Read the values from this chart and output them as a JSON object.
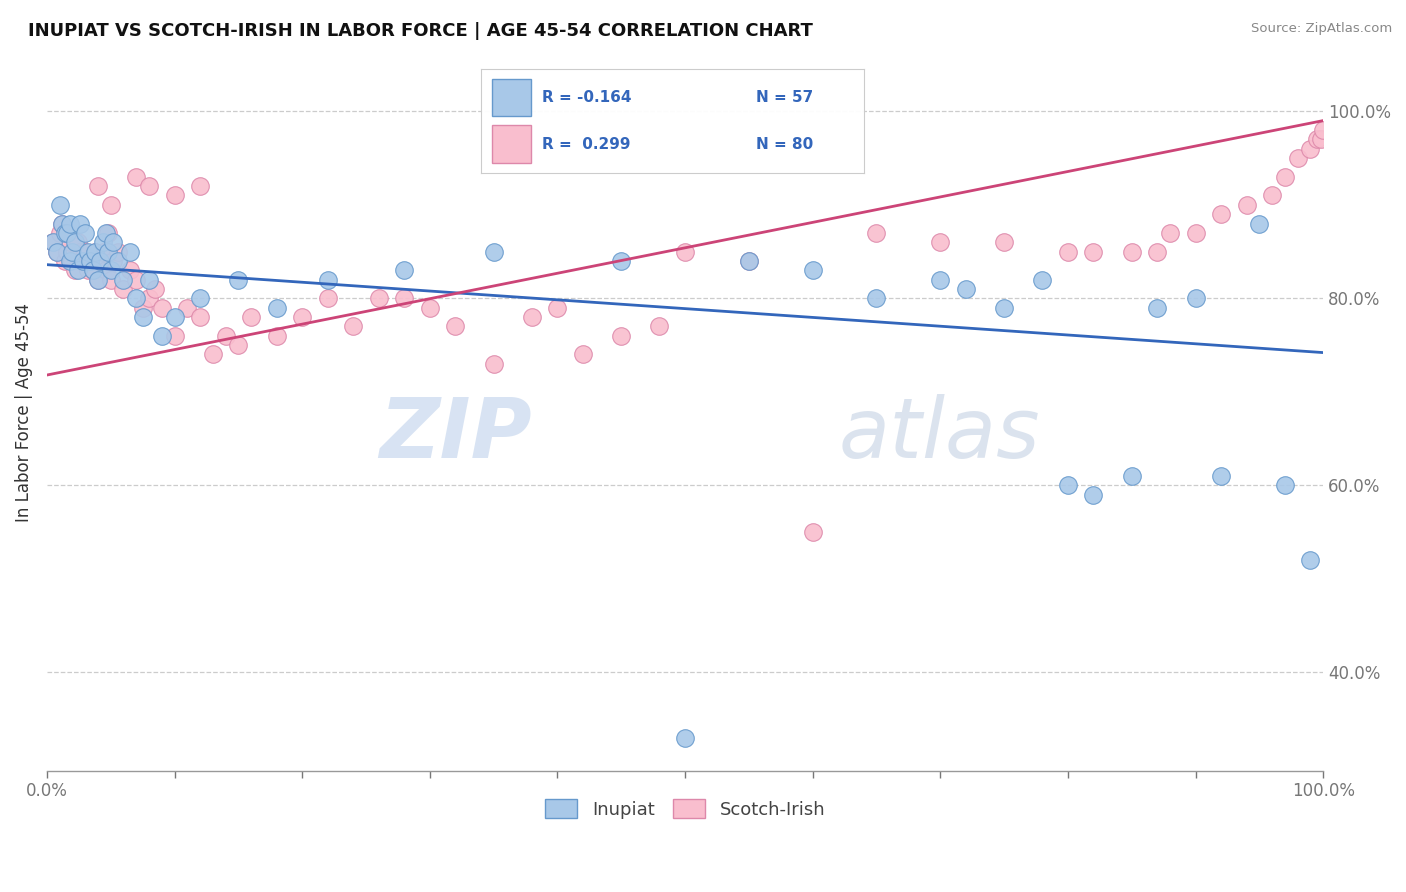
{
  "title": "INUPIAT VS SCOTCH-IRISH IN LABOR FORCE | AGE 45-54 CORRELATION CHART",
  "source": "Source: ZipAtlas.com",
  "ylabel": "In Labor Force | Age 45-54",
  "xlim": [
    0.0,
    1.0
  ],
  "ylim": [
    0.295,
    1.06
  ],
  "yticks": [
    0.4,
    0.6,
    0.8,
    1.0
  ],
  "ytick_labels": [
    "40.0%",
    "60.0%",
    "80.0%",
    "100.0%"
  ],
  "xtick_labels_show": [
    "0.0%",
    "100.0%"
  ],
  "inupiat_color": "#a8c8e8",
  "scotch_color": "#f9bece",
  "inupiat_edge": "#6699cc",
  "scotch_edge": "#dd88aa",
  "trend_blue": "#3366bb",
  "trend_pink": "#cc4477",
  "watermark_zip": "ZIP",
  "watermark_atlas": "atlas",
  "legend_box_color": "#eeeeee",
  "blue_trend_start": 0.836,
  "blue_trend_end": 0.742,
  "pink_trend_start": 0.718,
  "pink_trend_end": 0.99,
  "inupiat_x": [
    0.005,
    0.008,
    0.01,
    0.012,
    0.014,
    0.016,
    0.018,
    0.018,
    0.02,
    0.022,
    0.024,
    0.026,
    0.028,
    0.03,
    0.032,
    0.034,
    0.036,
    0.038,
    0.04,
    0.042,
    0.044,
    0.046,
    0.048,
    0.05,
    0.052,
    0.056,
    0.06,
    0.065,
    0.07,
    0.075,
    0.08,
    0.09,
    0.1,
    0.12,
    0.15,
    0.18,
    0.22,
    0.28,
    0.35,
    0.45,
    0.5,
    0.55,
    0.6,
    0.65,
    0.7,
    0.72,
    0.75,
    0.78,
    0.8,
    0.82,
    0.85,
    0.87,
    0.9,
    0.92,
    0.95,
    0.97,
    0.99
  ],
  "inupiat_y": [
    0.86,
    0.85,
    0.9,
    0.88,
    0.87,
    0.87,
    0.88,
    0.84,
    0.85,
    0.86,
    0.83,
    0.88,
    0.84,
    0.87,
    0.85,
    0.84,
    0.83,
    0.85,
    0.82,
    0.84,
    0.86,
    0.87,
    0.85,
    0.83,
    0.86,
    0.84,
    0.82,
    0.85,
    0.8,
    0.78,
    0.82,
    0.76,
    0.78,
    0.8,
    0.82,
    0.79,
    0.82,
    0.83,
    0.85,
    0.84,
    0.33,
    0.84,
    0.83,
    0.8,
    0.82,
    0.81,
    0.79,
    0.82,
    0.6,
    0.59,
    0.61,
    0.79,
    0.8,
    0.61,
    0.88,
    0.6,
    0.52
  ],
  "scotch_x": [
    0.005,
    0.008,
    0.01,
    0.012,
    0.014,
    0.016,
    0.018,
    0.02,
    0.022,
    0.024,
    0.026,
    0.028,
    0.03,
    0.032,
    0.034,
    0.036,
    0.038,
    0.04,
    0.042,
    0.044,
    0.046,
    0.048,
    0.05,
    0.052,
    0.056,
    0.06,
    0.065,
    0.07,
    0.075,
    0.08,
    0.085,
    0.09,
    0.1,
    0.11,
    0.12,
    0.13,
    0.14,
    0.15,
    0.16,
    0.18,
    0.2,
    0.22,
    0.24,
    0.26,
    0.28,
    0.3,
    0.32,
    0.35,
    0.38,
    0.4,
    0.42,
    0.45,
    0.48,
    0.5,
    0.55,
    0.6,
    0.65,
    0.7,
    0.75,
    0.8,
    0.82,
    0.85,
    0.87,
    0.88,
    0.9,
    0.92,
    0.94,
    0.96,
    0.97,
    0.98,
    0.99,
    0.995,
    0.998,
    1.0,
    0.04,
    0.05,
    0.07,
    0.08,
    0.1,
    0.12
  ],
  "scotch_y": [
    0.86,
    0.85,
    0.87,
    0.88,
    0.84,
    0.85,
    0.86,
    0.84,
    0.83,
    0.86,
    0.85,
    0.84,
    0.85,
    0.83,
    0.84,
    0.83,
    0.85,
    0.82,
    0.84,
    0.85,
    0.83,
    0.87,
    0.82,
    0.84,
    0.85,
    0.81,
    0.83,
    0.82,
    0.79,
    0.8,
    0.81,
    0.79,
    0.76,
    0.79,
    0.78,
    0.74,
    0.76,
    0.75,
    0.78,
    0.76,
    0.78,
    0.8,
    0.77,
    0.8,
    0.8,
    0.79,
    0.77,
    0.73,
    0.78,
    0.79,
    0.74,
    0.76,
    0.77,
    0.85,
    0.84,
    0.55,
    0.87,
    0.86,
    0.86,
    0.85,
    0.85,
    0.85,
    0.85,
    0.87,
    0.87,
    0.89,
    0.9,
    0.91,
    0.93,
    0.95,
    0.96,
    0.97,
    0.97,
    0.98,
    0.92,
    0.9,
    0.93,
    0.92,
    0.91,
    0.92
  ]
}
